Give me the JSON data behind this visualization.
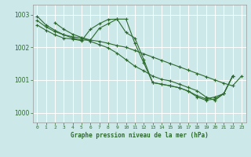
{
  "xlabel": "Graphe pression niveau de la mer (hPa)",
  "ylim": [
    999.7,
    1003.3
  ],
  "xlim": [
    -0.5,
    23.5
  ],
  "yticks": [
    1000,
    1001,
    1002,
    1003
  ],
  "xticks": [
    0,
    1,
    2,
    3,
    4,
    5,
    6,
    7,
    8,
    9,
    10,
    11,
    12,
    13,
    14,
    15,
    16,
    17,
    18,
    19,
    20,
    21,
    22,
    23
  ],
  "bg_color": "#cce8e8",
  "grid_color": "#ffffff",
  "line_color": "#2d6a2d",
  "linewidth": 0.8,
  "markersize": 3,
  "figsize": [
    3.2,
    2.0
  ],
  "dpi": 100,
  "lines": [
    {
      "x_start": 2,
      "y": [
        1002.75,
        1002.55,
        1002.4,
        1002.3,
        1002.22,
        1002.18,
        1002.12,
        1002.05,
        1002.0,
        1001.9,
        1001.8,
        1001.7,
        1001.6,
        1001.5,
        1001.4,
        1001.3,
        1001.2,
        1001.1,
        1001.0,
        1000.9,
        1000.82,
        1001.12
      ]
    },
    {
      "x_start": 0,
      "y": [
        1002.68,
        1002.52,
        1002.38,
        1002.28,
        1002.25,
        1002.2,
        1002.55,
        1002.72,
        1002.85,
        1002.86,
        1002.45,
        1002.28,
        1001.62,
        1000.92,
        1000.87,
        1000.82,
        1000.76,
        1000.66,
        1000.52,
        1000.42,
        1000.48,
        1000.58,
        1001.12
      ]
    },
    {
      "x_start": 0,
      "y": [
        1002.95,
        1002.68,
        1002.52,
        1002.38,
        1002.28,
        1002.22,
        1002.22,
        1002.58,
        1002.72,
        1002.86,
        1002.86,
        1002.12,
        1001.52,
        1000.92,
        1000.87,
        1000.82,
        1000.76,
        1000.66,
        1000.48,
        1000.38,
        1000.42,
        1000.58,
        1001.12
      ]
    },
    {
      "x_start": 0,
      "y": [
        1002.82,
        1002.62,
        1002.48,
        1002.38,
        1002.32,
        1002.28,
        1002.18,
        1002.08,
        1001.98,
        1001.82,
        1001.62,
        1001.42,
        1001.28,
        1001.12,
        1001.02,
        1000.97,
        1000.87,
        1000.77,
        1000.67,
        1000.48,
        1000.38,
        1000.58,
        1001.12
      ]
    }
  ]
}
